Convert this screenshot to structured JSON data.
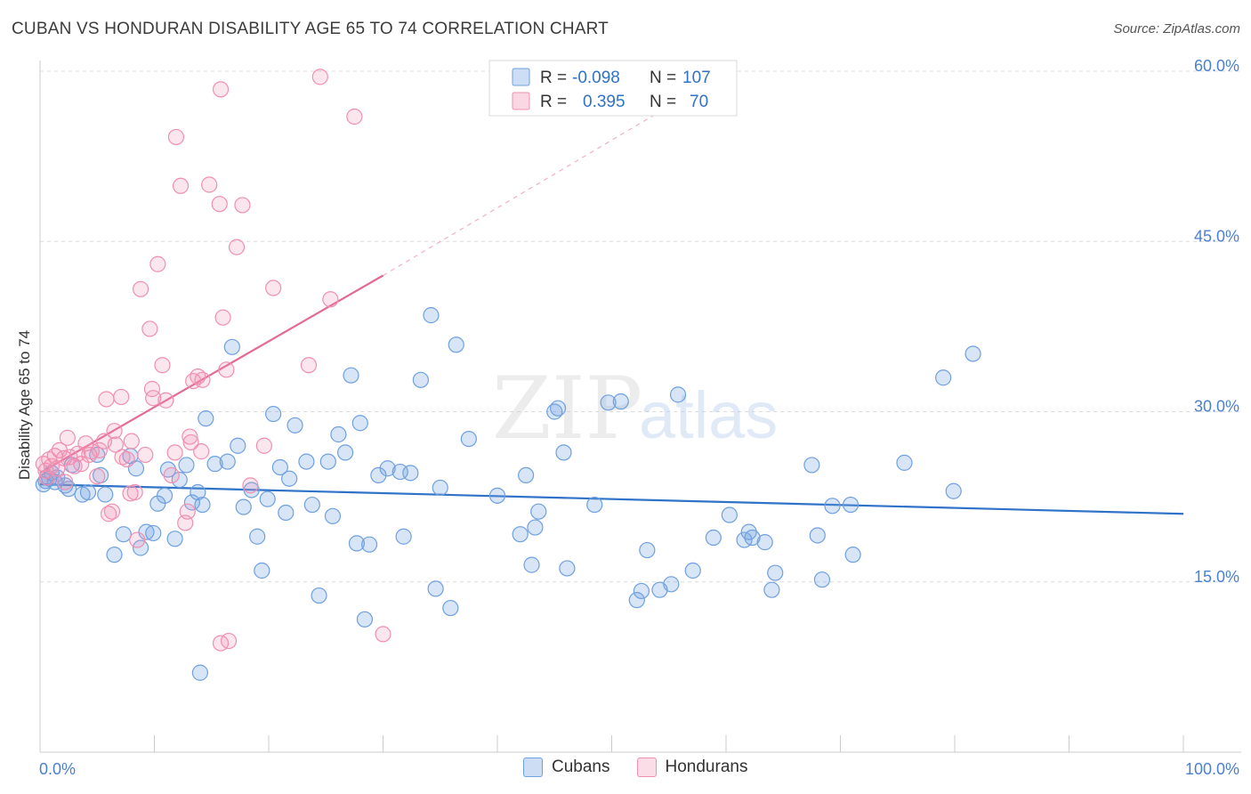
{
  "title": "CUBAN VS HONDURAN DISABILITY AGE 65 TO 74 CORRELATION CHART",
  "source": "Source: ZipAtlas.com",
  "watermark": {
    "zip": "ZIP",
    "atlas": "atlas"
  },
  "colors": {
    "cubans": "#6fa0e0",
    "hondurans": "#f08fb0",
    "cubans_line": "#2f72c8",
    "hondurans_line": "#e36a92",
    "axis_label": "#4a80d0"
  },
  "legend": {
    "rows": [
      {
        "r_label": "R = ",
        "r_value": "-0.098",
        "n_label": "N = ",
        "n_value": "107",
        "color": "#6fa0e0"
      },
      {
        "r_label": "R = ",
        "r_value": "0.395",
        "n_label": "N = ",
        "n_value": "70",
        "color": "#f08fb0"
      }
    ],
    "placement": "top-center"
  },
  "bottom_legend": [
    {
      "label": "Cubans",
      "color": "#6fa0e0"
    },
    {
      "label": "Hondurans",
      "color": "#f08fb0"
    }
  ],
  "chart_data": {
    "type": "scatter",
    "title": "CUBAN VS HONDURAN DISABILITY AGE 65 TO 74 CORRELATION CHART",
    "xlabel": "",
    "ylabel": "Disability Age 65 to 74",
    "xlim": [
      0,
      100
    ],
    "ylim": [
      0,
      62
    ],
    "x_tick_labels": [
      "0.0%",
      "100.0%"
    ],
    "y_ticks": [
      15,
      30,
      45,
      60
    ],
    "y_tick_labels": [
      "15.0%",
      "30.0%",
      "45.0%",
      "60.0%"
    ],
    "grid": true,
    "series": [
      {
        "name": "Cubans",
        "r": -0.098,
        "n": 107,
        "trend": {
          "x": [
            0,
            100
          ],
          "y": [
            23.6,
            21.0
          ]
        },
        "points": [
          [
            0.3,
            23.6
          ],
          [
            0.5,
            23.9
          ],
          [
            0.8,
            24.1
          ],
          [
            1.0,
            24.6
          ],
          [
            1.3,
            23.8
          ],
          [
            1.5,
            24.2
          ],
          [
            2.2,
            23.5
          ],
          [
            2.5,
            23.2
          ],
          [
            2.8,
            25.3
          ],
          [
            3.7,
            22.7
          ],
          [
            4.2,
            22.9
          ],
          [
            5.0,
            26.2
          ],
          [
            5.3,
            24.4
          ],
          [
            5.7,
            22.7
          ],
          [
            6.5,
            17.4
          ],
          [
            7.3,
            19.2
          ],
          [
            7.9,
            26.1
          ],
          [
            8.4,
            25.0
          ],
          [
            8.8,
            18.0
          ],
          [
            9.3,
            19.4
          ],
          [
            9.9,
            19.3
          ],
          [
            10.3,
            21.9
          ],
          [
            10.9,
            22.6
          ],
          [
            11.2,
            24.9
          ],
          [
            11.8,
            18.8
          ],
          [
            12.2,
            24.0
          ],
          [
            12.8,
            25.3
          ],
          [
            13.3,
            22.0
          ],
          [
            13.8,
            22.9
          ],
          [
            14.2,
            21.8
          ],
          [
            14.5,
            29.4
          ],
          [
            15.3,
            25.4
          ],
          [
            16.4,
            25.6
          ],
          [
            16.8,
            35.7
          ],
          [
            17.3,
            27.0
          ],
          [
            17.8,
            21.6
          ],
          [
            18.5,
            23.1
          ],
          [
            19.0,
            19.0
          ],
          [
            19.4,
            16.0
          ],
          [
            19.9,
            22.3
          ],
          [
            20.4,
            29.8
          ],
          [
            21.0,
            25.1
          ],
          [
            21.5,
            21.1
          ],
          [
            21.8,
            24.1
          ],
          [
            22.3,
            28.8
          ],
          [
            23.3,
            25.6
          ],
          [
            23.8,
            21.8
          ],
          [
            24.4,
            13.8
          ],
          [
            25.2,
            25.6
          ],
          [
            25.6,
            20.8
          ],
          [
            26.1,
            28.0
          ],
          [
            26.7,
            26.4
          ],
          [
            27.2,
            33.2
          ],
          [
            27.7,
            18.4
          ],
          [
            28.0,
            29.0
          ],
          [
            28.4,
            11.7
          ],
          [
            28.8,
            18.3
          ],
          [
            29.6,
            24.4
          ],
          [
            30.4,
            25.0
          ],
          [
            31.5,
            24.7
          ],
          [
            31.8,
            19.0
          ],
          [
            32.4,
            24.6
          ],
          [
            33.3,
            32.8
          ],
          [
            34.2,
            38.5
          ],
          [
            34.6,
            14.4
          ],
          [
            35.0,
            23.3
          ],
          [
            35.9,
            12.7
          ],
          [
            36.4,
            35.9
          ],
          [
            37.5,
            27.6
          ],
          [
            40.0,
            22.6
          ],
          [
            42.0,
            19.2
          ],
          [
            42.5,
            24.4
          ],
          [
            43.0,
            16.5
          ],
          [
            43.3,
            19.8
          ],
          [
            43.6,
            21.2
          ],
          [
            45.0,
            30.0
          ],
          [
            45.3,
            30.3
          ],
          [
            45.8,
            26.4
          ],
          [
            46.1,
            16.2
          ],
          [
            48.5,
            21.8
          ],
          [
            49.7,
            30.8
          ],
          [
            50.8,
            30.9
          ],
          [
            52.2,
            13.4
          ],
          [
            52.6,
            14.2
          ],
          [
            53.1,
            17.8
          ],
          [
            54.2,
            14.3
          ],
          [
            55.2,
            14.8
          ],
          [
            55.8,
            31.5
          ],
          [
            57.1,
            16.0
          ],
          [
            58.9,
            18.9
          ],
          [
            60.3,
            20.9
          ],
          [
            61.6,
            18.7
          ],
          [
            62.0,
            19.4
          ],
          [
            62.3,
            18.9
          ],
          [
            63.4,
            18.5
          ],
          [
            64.0,
            14.3
          ],
          [
            64.3,
            15.8
          ],
          [
            67.5,
            25.3
          ],
          [
            68.0,
            19.1
          ],
          [
            68.4,
            15.2
          ],
          [
            69.3,
            21.7
          ],
          [
            70.9,
            21.8
          ],
          [
            71.1,
            17.4
          ],
          [
            75.6,
            25.5
          ],
          [
            79.0,
            33.0
          ],
          [
            79.9,
            23.0
          ],
          [
            81.6,
            35.1
          ],
          [
            14.0,
            7.0
          ]
        ]
      },
      {
        "name": "Hondurans",
        "r": 0.395,
        "n": 70,
        "trend": {
          "x": [
            0,
            30.0
          ],
          "y": [
            24.6,
            42.0
          ]
        },
        "trend_dashed": {
          "x": [
            30.0,
            56.0
          ],
          "y": [
            42.0,
            57.5
          ]
        },
        "points": [
          [
            0.3,
            25.4
          ],
          [
            0.5,
            24.8
          ],
          [
            0.8,
            25.8
          ],
          [
            1.0,
            25.2
          ],
          [
            1.3,
            26.1
          ],
          [
            1.5,
            25.0
          ],
          [
            1.7,
            26.6
          ],
          [
            2.1,
            25.9
          ],
          [
            2.4,
            27.7
          ],
          [
            2.6,
            26.0
          ],
          [
            3.0,
            25.2
          ],
          [
            3.3,
            26.3
          ],
          [
            3.6,
            25.4
          ],
          [
            4.0,
            27.2
          ],
          [
            4.3,
            26.2
          ],
          [
            4.5,
            26.5
          ],
          [
            5.0,
            24.3
          ],
          [
            5.2,
            26.6
          ],
          [
            5.6,
            27.4
          ],
          [
            5.8,
            31.1
          ],
          [
            6.0,
            21.0
          ],
          [
            6.3,
            21.2
          ],
          [
            6.5,
            28.3
          ],
          [
            6.6,
            27.1
          ],
          [
            7.1,
            31.3
          ],
          [
            7.2,
            26.0
          ],
          [
            7.6,
            25.8
          ],
          [
            7.9,
            22.8
          ],
          [
            8.0,
            27.4
          ],
          [
            8.3,
            22.9
          ],
          [
            8.5,
            18.7
          ],
          [
            8.8,
            40.8
          ],
          [
            9.2,
            26.2
          ],
          [
            9.6,
            37.3
          ],
          [
            9.8,
            32.0
          ],
          [
            9.9,
            31.2
          ],
          [
            10.3,
            43.0
          ],
          [
            10.7,
            34.1
          ],
          [
            11.0,
            31.0
          ],
          [
            11.5,
            24.4
          ],
          [
            11.8,
            26.4
          ],
          [
            11.9,
            54.2
          ],
          [
            12.3,
            49.9
          ],
          [
            12.7,
            20.2
          ],
          [
            12.9,
            21.2
          ],
          [
            13.1,
            27.8
          ],
          [
            13.2,
            27.3
          ],
          [
            13.4,
            32.7
          ],
          [
            13.8,
            33.1
          ],
          [
            14.1,
            26.5
          ],
          [
            14.2,
            32.8
          ],
          [
            14.8,
            50.0
          ],
          [
            15.7,
            48.3
          ],
          [
            15.8,
            58.4
          ],
          [
            15.8,
            9.6
          ],
          [
            16.0,
            38.3
          ],
          [
            16.3,
            33.7
          ],
          [
            16.5,
            9.8
          ],
          [
            17.2,
            44.5
          ],
          [
            17.7,
            48.2
          ],
          [
            18.4,
            23.5
          ],
          [
            19.6,
            27.0
          ],
          [
            20.4,
            40.9
          ],
          [
            23.5,
            34.1
          ],
          [
            24.5,
            59.5
          ],
          [
            25.4,
            39.9
          ],
          [
            27.5,
            56.0
          ],
          [
            30.0,
            10.4
          ],
          [
            0.6,
            24.2
          ],
          [
            2.2,
            23.8
          ]
        ]
      }
    ]
  }
}
